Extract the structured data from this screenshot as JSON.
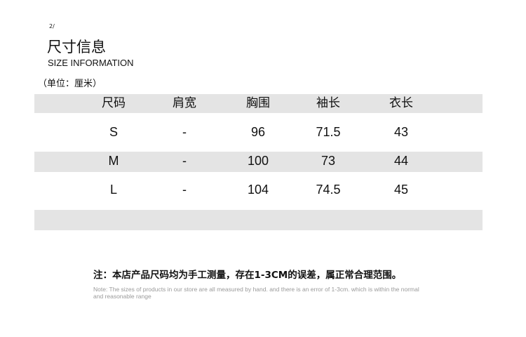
{
  "header": {
    "page_mark": "2/",
    "title": "尺寸信息",
    "subtitle": "SIZE INFORMATION",
    "unit": "（单位：厘米）"
  },
  "table": {
    "columns": [
      "尺码",
      "肩宽",
      "胸围",
      "袖长",
      "衣长"
    ],
    "rows": [
      [
        "S",
        "-",
        "96",
        "71.5",
        "43"
      ],
      [
        "M",
        "-",
        "100",
        "73",
        "44"
      ],
      [
        "L",
        "-",
        "104",
        "74.5",
        "45"
      ]
    ],
    "band_color": "#e4e4e4"
  },
  "notes": {
    "chinese": "注：本店产品尺码均为手工测量，存在1-3CM的误差，属正常合理范围。",
    "english": "Note: The sizes of products in our store are all measured by hand. and there is an error of 1-3cm. which is within the normal and reasonable range"
  }
}
